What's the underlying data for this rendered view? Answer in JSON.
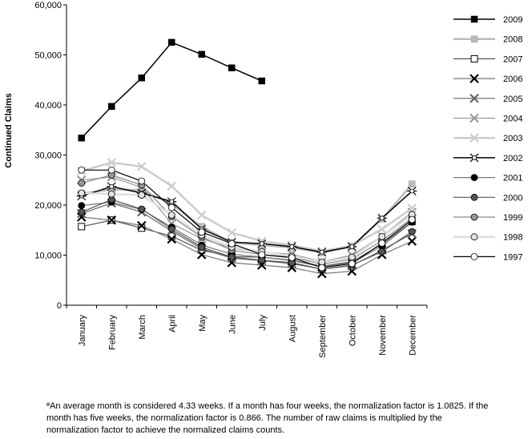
{
  "chart_data": {
    "type": "line",
    "ylabel": "Continued Claims",
    "xlabel": "",
    "ylim": [
      0,
      60000
    ],
    "yticks": [
      "0",
      "10,000",
      "20,000",
      "30,000",
      "40,000",
      "50,000",
      "60,000"
    ],
    "categories": [
      "January",
      "February",
      "March",
      "April",
      "May",
      "June",
      "July",
      "August",
      "September",
      "October",
      "November",
      "December"
    ],
    "grid": false,
    "legend": "right",
    "series": [
      {
        "name": "2009",
        "color": "#000000",
        "width": 1.5,
        "marker": "square-filled",
        "values": [
          33400,
          39700,
          45400,
          52500,
          50100,
          47400,
          44800,
          null,
          null,
          null,
          null,
          null
        ]
      },
      {
        "name": "2008",
        "color": "#bbbbbb",
        "width": 2.5,
        "marker": "square-filled",
        "values": [
          22300,
          23100,
          23000,
          20200,
          15700,
          12500,
          12000,
          11500,
          10500,
          11800,
          17200,
          24200
        ]
      },
      {
        "name": "2007",
        "color": "#555555",
        "width": 1.2,
        "marker": "square-open",
        "values": [
          15700,
          17000,
          15400,
          13800,
          11000,
          9700,
          9600,
          9000,
          7800,
          8700,
          12200,
          16700
        ]
      },
      {
        "name": "2006",
        "color": "#777777",
        "width": 1.2,
        "marker": "x",
        "values": [
          17600,
          17000,
          15900,
          13200,
          10100,
          8500,
          8000,
          7500,
          6300,
          6800,
          10100,
          12800
        ]
      },
      {
        "name": "2005",
        "color": "#666666",
        "width": 1.2,
        "marker": "x",
        "values": [
          18300,
          20400,
          18600,
          14800,
          11300,
          9400,
          8900,
          8300,
          7200,
          7900,
          11000,
          14300
        ]
      },
      {
        "name": "2004",
        "color": "#999999",
        "width": 1.2,
        "marker": "x",
        "values": [
          25000,
          25600,
          23500,
          16300,
          13300,
          11400,
          10600,
          10200,
          8700,
          10000,
          13800,
          18600
        ]
      },
      {
        "name": "2003",
        "color": "#cccccc",
        "width": 2.5,
        "marker": "x",
        "values": [
          26800,
          28500,
          27700,
          23800,
          18000,
          14500,
          12800,
          12000,
          10800,
          11900,
          15200,
          19400
        ]
      },
      {
        "name": "2002",
        "color": "#000000",
        "width": 1.5,
        "marker": "star",
        "values": [
          21800,
          23700,
          22400,
          20700,
          15200,
          12600,
          12300,
          11700,
          10600,
          11700,
          17400,
          22800
        ]
      },
      {
        "name": "2001",
        "color": "#777777",
        "width": 1.2,
        "marker": "circle-black",
        "values": [
          19900,
          20600,
          19100,
          15600,
          12000,
          10200,
          9600,
          8900,
          7700,
          8500,
          11800,
          16600
        ]
      },
      {
        "name": "2000",
        "color": "#555555",
        "width": 1.2,
        "marker": "circle-dark",
        "values": [
          18600,
          21100,
          19200,
          15200,
          11600,
          9600,
          9000,
          8500,
          7200,
          8000,
          10700,
          14700
        ]
      },
      {
        "name": "1999",
        "color": "#888888",
        "width": 1.2,
        "marker": "circle-gray",
        "values": [
          24400,
          26000,
          24000,
          17700,
          13600,
          11000,
          10100,
          9600,
          8200,
          9200,
          12900,
          17400
        ]
      },
      {
        "name": "1998",
        "color": "#dddddd",
        "width": 2.5,
        "marker": "circle-light",
        "values": [
          22400,
          22200,
          22000,
          18000,
          14000,
          11600,
          10700,
          9800,
          8600,
          9600,
          13700,
          18100
        ]
      },
      {
        "name": "1997",
        "color": "#000000",
        "width": 1.2,
        "marker": "circle-open",
        "values": [
          27000,
          27000,
          24800,
          19500,
          14600,
          12300,
          10100,
          9500,
          7500,
          8300,
          12400,
          17100
        ]
      }
    ]
  },
  "footnote": "ªAn average month is considered 4.33 weeks. If a month has four weeks, the normalization factor is 1.0825. If the month has five weeks, the normalization factor is 0.866. The number of raw claims is multiplied by the normalization factor to achieve the normalized claims counts."
}
